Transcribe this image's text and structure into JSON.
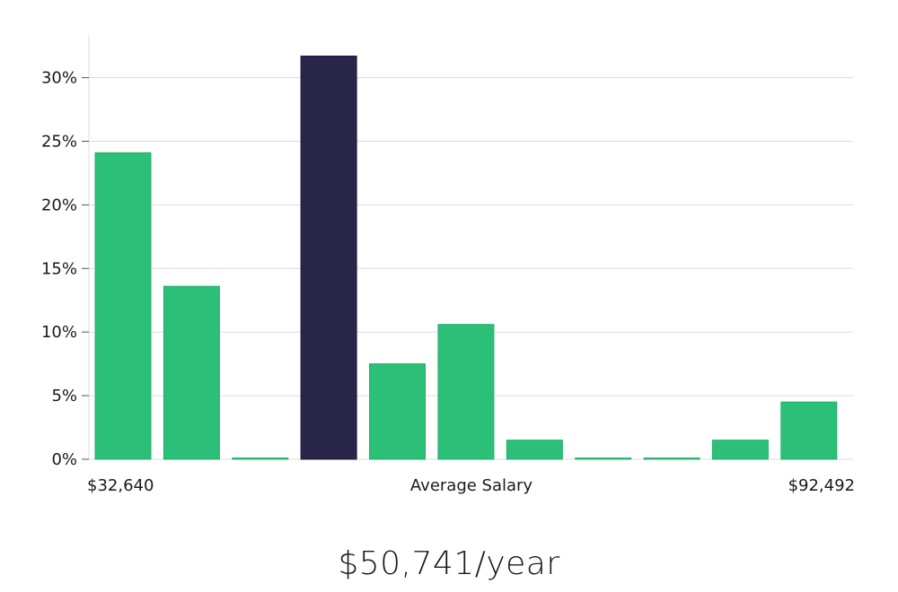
{
  "chart_data": {
    "type": "bar",
    "values": [
      24.1,
      13.6,
      0.1,
      31.7,
      7.5,
      10.6,
      1.5,
      0.1,
      0.1,
      1.5,
      4.5
    ],
    "highlight_index": 3,
    "colors": {
      "bar": "#2bbf78",
      "highlight": "#29264a",
      "grid": "#dcdcdc"
    },
    "y_ticks": [
      "0%",
      "5%",
      "10%",
      "15%",
      "20%",
      "25%",
      "30%"
    ],
    "ylim": [
      0,
      33
    ],
    "x_labels": {
      "left": "$32,640",
      "center": "Average Salary",
      "right": "$92,492"
    },
    "grid": true
  },
  "salary_display": "$50,741/year"
}
